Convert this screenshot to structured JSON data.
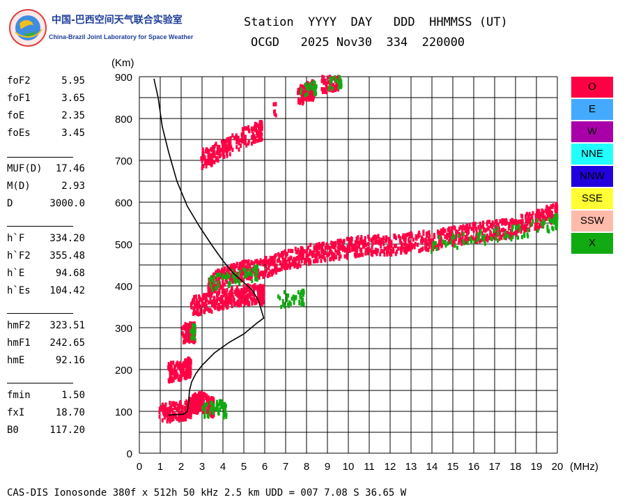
{
  "logo": {
    "cn": "中国-巴西空间天气联合实验室",
    "en": "China-Brazil Joint Laboratory for Space Weather"
  },
  "header": {
    "row1": "Station  YYYY  DAY   DDD  HHMMSS (UT)",
    "row2": "OCGD   2025 Nov30  334  220000"
  },
  "params": [
    {
      "label": "foF2",
      "value": "5.95"
    },
    {
      "label": "foF1",
      "value": "3.65"
    },
    {
      "label": "foE",
      "value": "2.35"
    },
    {
      "label": "foEs",
      "value": "3.45"
    },
    {
      "label": "MUF(D)",
      "value": "17.46"
    },
    {
      "label": "M(D)",
      "value": "2.93"
    },
    {
      "label": "D",
      "value": "3000.0"
    },
    {
      "label": "h`F",
      "value": "334.20"
    },
    {
      "label": "h`F2",
      "value": "355.48"
    },
    {
      "label": "h`E",
      "value": "94.68"
    },
    {
      "label": "h`Es",
      "value": "104.42"
    },
    {
      "label": "hmF2",
      "value": "323.51"
    },
    {
      "label": "hmF1",
      "value": "242.65"
    },
    {
      "label": "hmE",
      "value": "92.16"
    },
    {
      "label": "fmin",
      "value": "1.50"
    },
    {
      "label": "fxI",
      "value": "18.70"
    },
    {
      "label": "B0",
      "value": "117.20"
    }
  ],
  "legend": [
    {
      "label": "O",
      "color": "#ff0044",
      "text": "#000000"
    },
    {
      "label": "E",
      "color": "#44aaff",
      "text": "#000000"
    },
    {
      "label": "W",
      "color": "#aa00aa",
      "text": "#000000"
    },
    {
      "label": "NNE",
      "color": "#22ffff",
      "text": "#000000"
    },
    {
      "label": "NNW",
      "color": "#2200dd",
      "text": "#000000"
    },
    {
      "label": "SSE",
      "color": "#ffff33",
      "text": "#000000"
    },
    {
      "label": "SSW",
      "color": "#ffbbaa",
      "text": "#000000"
    },
    {
      "label": "X",
      "color": "#11aa11",
      "text": "#000000"
    }
  ],
  "footer": "CAS-DIS Ionosonde 380f x 512h 50 kHz 2.5 km UDD = 007 7.08 S 36.65 W",
  "chart_data": {
    "type": "scatter",
    "title": "",
    "xlabel": "(MHz)",
    "ylabel": "(Km)",
    "xlim": [
      0,
      20
    ],
    "ylim": [
      0,
      900
    ],
    "x_ticks": [
      "0",
      "1",
      "2",
      "3",
      "4",
      "5",
      "6",
      "7",
      "8",
      "9",
      "10",
      "11",
      "12",
      "13",
      "14",
      "15",
      "16",
      "17",
      "18",
      "19",
      "20"
    ],
    "y_ticks": [
      "0",
      "100",
      "200",
      "300",
      "400",
      "500",
      "600",
      "700",
      "800",
      "900"
    ],
    "grid": true,
    "colors": {
      "O": "#ff0044",
      "X": "#11aa11",
      "profile": "#000000"
    },
    "series": [
      {
        "name": "O",
        "traces": [
          [
            [
              1.0,
              97
            ],
            [
              1.5,
              98
            ],
            [
              2.0,
              99
            ],
            [
              2.3,
              103
            ],
            [
              2.5,
              110
            ],
            [
              2.7,
              118
            ],
            [
              2.9,
              125
            ],
            [
              3.2,
              118
            ],
            [
              3.5,
              110
            ]
          ],
          [
            [
              1.4,
              193
            ],
            [
              1.8,
              195
            ],
            [
              2.2,
              200
            ],
            [
              2.4,
              205
            ]
          ],
          [
            [
              2.1,
              287
            ],
            [
              2.4,
              288
            ],
            [
              2.6,
              288
            ]
          ],
          [
            [
              2.5,
              350
            ],
            [
              3.0,
              355
            ],
            [
              3.5,
              362
            ],
            [
              4.0,
              368
            ],
            [
              4.5,
              373
            ],
            [
              5.0,
              378
            ],
            [
              5.5,
              380
            ],
            [
              5.9,
              378
            ]
          ],
          [
            [
              3.3,
              395
            ],
            [
              3.7,
              412
            ],
            [
              4.2,
              425
            ],
            [
              4.7,
              432
            ],
            [
              5.2,
              438
            ],
            [
              5.8,
              442
            ],
            [
              6.4,
              448
            ],
            [
              7.0,
              462
            ],
            [
              7.6,
              468
            ],
            [
              8.2,
              475
            ],
            [
              8.8,
              480
            ],
            [
              9.4,
              486
            ],
            [
              10.0,
              490
            ],
            [
              10.6,
              494
            ],
            [
              11.3,
              497
            ],
            [
              12.0,
              497
            ],
            [
              12.7,
              501
            ],
            [
              13.4,
              506
            ],
            [
              14.1,
              510
            ],
            [
              14.8,
              516
            ],
            [
              15.5,
              522
            ],
            [
              16.2,
              528
            ],
            [
              16.9,
              532
            ],
            [
              17.6,
              536
            ],
            [
              18.3,
              545
            ],
            [
              19.0,
              558
            ],
            [
              19.6,
              570
            ],
            [
              20.0,
              575
            ]
          ],
          [
            [
              3.0,
              702
            ],
            [
              3.4,
              710
            ],
            [
              3.9,
              722
            ],
            [
              4.5,
              742
            ],
            [
              5.4,
              762
            ],
            [
              5.8,
              770
            ]
          ],
          [
            [
              6.5,
              830
            ]
          ],
          [
            [
              7.6,
              855
            ],
            [
              8.0,
              862
            ],
            [
              8.3,
              867
            ]
          ],
          [
            [
              8.8,
              880
            ],
            [
              9.2,
              888
            ],
            [
              9.5,
              892
            ]
          ]
        ]
      },
      {
        "name": "X",
        "traces": [
          [
            [
              3.0,
              100
            ],
            [
              3.4,
              105
            ],
            [
              3.8,
              108
            ],
            [
              4.1,
              103
            ]
          ],
          [
            [
              2.5,
              290
            ],
            [
              2.6,
              288
            ]
          ],
          [
            [
              3.3,
              405
            ],
            [
              3.8,
              410
            ],
            [
              4.4,
              418
            ],
            [
              5.0,
              425
            ],
            [
              5.6,
              430
            ]
          ],
          [
            [
              6.6,
              365
            ],
            [
              7.2,
              370
            ],
            [
              7.8,
              372
            ]
          ],
          [
            [
              7.6,
              862
            ],
            [
              8.4,
              870
            ]
          ],
          [
            [
              9.0,
              884
            ],
            [
              9.6,
              890
            ]
          ],
          [
            [
              14.0,
              495
            ],
            [
              15.0,
              505
            ],
            [
              16.0,
              512
            ],
            [
              17.0,
              520
            ],
            [
              18.0,
              528
            ],
            [
              19.0,
              540
            ],
            [
              19.7,
              548
            ],
            [
              20.0,
              552
            ]
          ]
        ]
      }
    ],
    "profile": [
      [
        0.7,
        895
      ],
      [
        0.9,
        850
      ],
      [
        1.1,
        780
      ],
      [
        1.4,
        720
      ],
      [
        1.8,
        650
      ],
      [
        2.3,
        590
      ],
      [
        2.9,
        540
      ],
      [
        3.5,
        495
      ],
      [
        4.0,
        460
      ],
      [
        4.5,
        430
      ],
      [
        5.0,
        408
      ],
      [
        5.4,
        390
      ],
      [
        5.7,
        365
      ],
      [
        5.95,
        323
      ],
      [
        5.6,
        310
      ],
      [
        5.0,
        285
      ],
      [
        4.3,
        265
      ],
      [
        3.6,
        240
      ],
      [
        3.0,
        210
      ],
      [
        2.7,
        190
      ],
      [
        2.5,
        170
      ],
      [
        2.4,
        150
      ],
      [
        2.35,
        120
      ],
      [
        2.3,
        100
      ],
      [
        2.1,
        93
      ],
      [
        1.7,
        92
      ],
      [
        1.4,
        91
      ]
    ]
  }
}
